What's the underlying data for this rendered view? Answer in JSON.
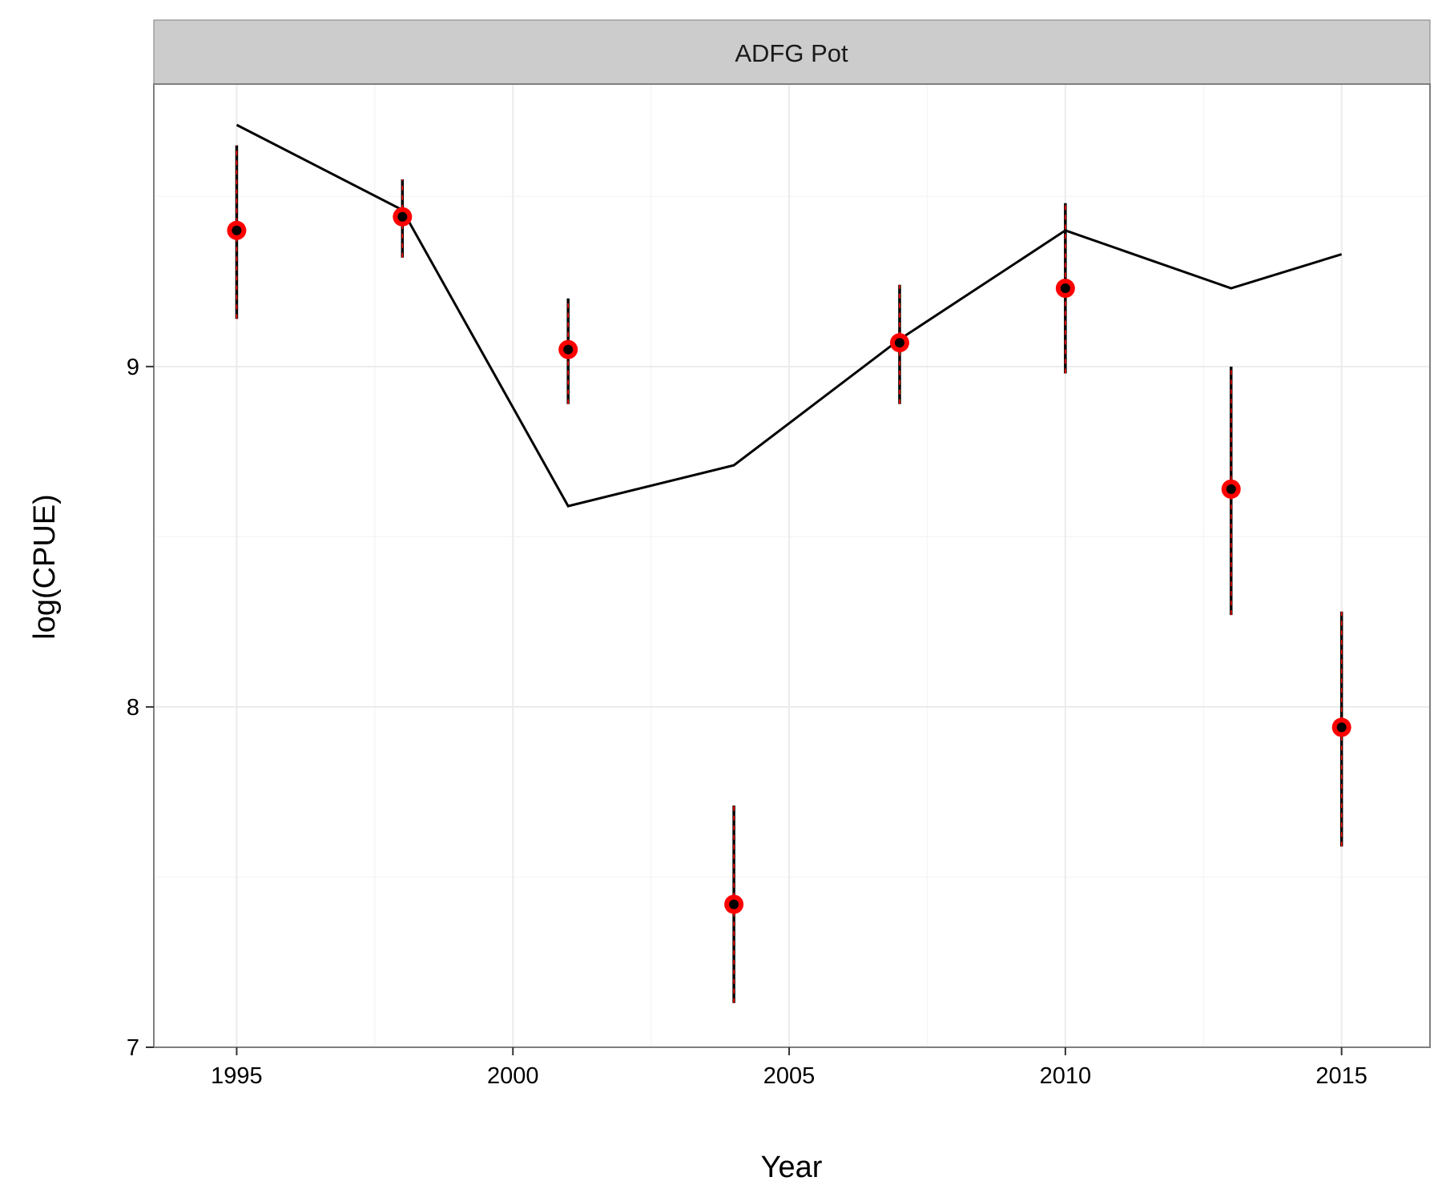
{
  "chart_data": {
    "type": "scatter",
    "facet_label": "ADFG Pot",
    "xlabel": "Year",
    "ylabel": "log(CPUE)",
    "xlim": [
      1993.5,
      2016.6
    ],
    "ylim": [
      7.0,
      9.83
    ],
    "x_ticks": [
      1995,
      2000,
      2005,
      2010,
      2015
    ],
    "y_ticks": [
      7,
      8,
      9
    ],
    "grid": true,
    "observed": [
      {
        "year": 1995,
        "value": 9.4,
        "lower": 9.14,
        "upper": 9.65
      },
      {
        "year": 1998,
        "value": 9.44,
        "lower": 9.32,
        "upper": 9.55
      },
      {
        "year": 2001,
        "value": 9.05,
        "lower": 8.89,
        "upper": 9.2
      },
      {
        "year": 2004,
        "value": 7.42,
        "lower": 7.13,
        "upper": 7.71
      },
      {
        "year": 2007,
        "value": 9.07,
        "lower": 8.89,
        "upper": 9.24
      },
      {
        "year": 2010,
        "value": 9.23,
        "lower": 8.98,
        "upper": 9.48
      },
      {
        "year": 2013,
        "value": 8.64,
        "lower": 8.27,
        "upper": 9.0
      },
      {
        "year": 2015,
        "value": 7.94,
        "lower": 7.59,
        "upper": 8.28
      }
    ],
    "predicted": {
      "x": [
        1995,
        1998,
        2001,
        2004,
        2007,
        2010,
        2013,
        2015
      ],
      "y": [
        9.71,
        9.46,
        8.59,
        8.71,
        9.08,
        9.4,
        9.23,
        9.33
      ]
    },
    "colors": {
      "point_fill": "#ff0000",
      "point_center": "#000000",
      "errorbar": "#000000",
      "errorbar_dash": "#ff0000",
      "line": "#000000",
      "strip_bg": "#cccccc",
      "grid": "#ebebeb",
      "border": "#7f7f7f"
    }
  }
}
